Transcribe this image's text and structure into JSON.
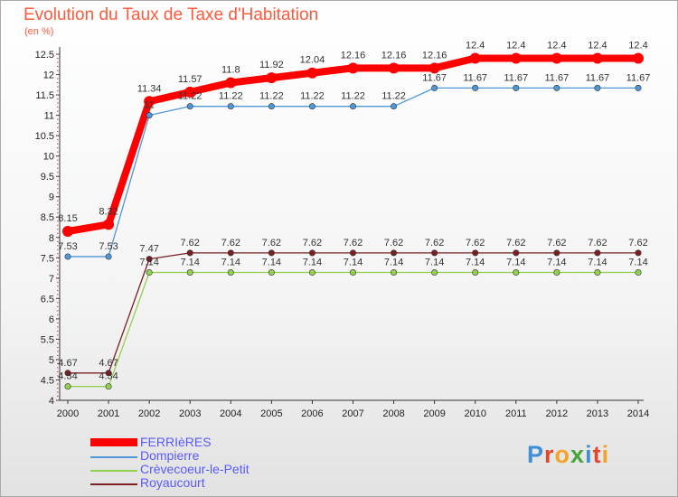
{
  "title": "Evolution du Taux de Taxe d'Habitation",
  "subtitle": "(en %)",
  "logo_text": "Proxiti",
  "chart_data": {
    "type": "line",
    "title": "Evolution du Taux de Taxe d'Habitation",
    "ylabel": "(en %)",
    "xlabel": "",
    "x": [
      "2000",
      "2001",
      "2002",
      "2003",
      "2004",
      "2005",
      "2006",
      "2007",
      "2008",
      "2009",
      "2010",
      "2011",
      "2012",
      "2013",
      "2014"
    ],
    "ylim": [
      4,
      12.5
    ],
    "yticks": [
      "4",
      "4.5",
      "5",
      "5.5",
      "6",
      "6.5",
      "7",
      "7.5",
      "8",
      "8.5",
      "9",
      "9.5",
      "10",
      "10.5",
      "11",
      "11.5",
      "12",
      "12.5"
    ],
    "grid": false,
    "legend_position": "bottom-left",
    "series": [
      {
        "name": "FERRIèRES",
        "color": "#ff0000",
        "values": [
          8.15,
          8.32,
          11.34,
          11.57,
          11.8,
          11.92,
          12.04,
          12.16,
          12.16,
          12.16,
          12.4,
          12.4,
          12.4,
          12.4,
          12.4
        ],
        "labels": [
          "8.15",
          "8.32",
          "11.34",
          "11.57",
          "11.8",
          "11.92",
          "12.04",
          "12.16",
          "12.16",
          "12.16",
          "12.4",
          "12.4",
          "12.4",
          "12.4",
          "12.4"
        ]
      },
      {
        "name": "Dompierre",
        "color": "#4f97d9",
        "values": [
          7.53,
          7.53,
          11,
          11.22,
          11.22,
          11.22,
          11.22,
          11.22,
          11.22,
          11.67,
          11.67,
          11.67,
          11.67,
          11.67,
          11.67
        ],
        "labels": [
          "7.53",
          "7.53",
          "11",
          "11.22",
          "11.22",
          "11.22",
          "11.22",
          "11.22",
          "11.22",
          "11.67",
          "11.67",
          "11.67",
          "11.67",
          "11.67",
          "11.67"
        ]
      },
      {
        "name": "Crèvecoeur-le-Petit",
        "color": "#92d050",
        "values": [
          4.34,
          4.34,
          7.14,
          7.14,
          7.14,
          7.14,
          7.14,
          7.14,
          7.14,
          7.14,
          7.14,
          7.14,
          7.14,
          7.14,
          7.14
        ],
        "labels": [
          "4.34",
          "4.34",
          "7.14",
          "7.14",
          "7.14",
          "7.14",
          "7.14",
          "7.14",
          "7.14",
          "7.14",
          "7.14",
          "7.14",
          "7.14",
          "7.14",
          "7.14"
        ]
      },
      {
        "name": "Royaucourt",
        "color": "#7a1f24",
        "values": [
          4.67,
          4.67,
          7.47,
          7.62,
          7.62,
          7.62,
          7.62,
          7.62,
          7.62,
          7.62,
          7.62,
          7.62,
          7.62,
          7.62,
          7.62
        ],
        "labels": [
          "4.67",
          "4.67",
          "7.47",
          "7.62",
          "7.62",
          "7.62",
          "7.62",
          "7.62",
          "7.62",
          "7.62",
          "7.62",
          "7.62",
          "7.62",
          "7.62",
          "7.62"
        ]
      }
    ]
  }
}
